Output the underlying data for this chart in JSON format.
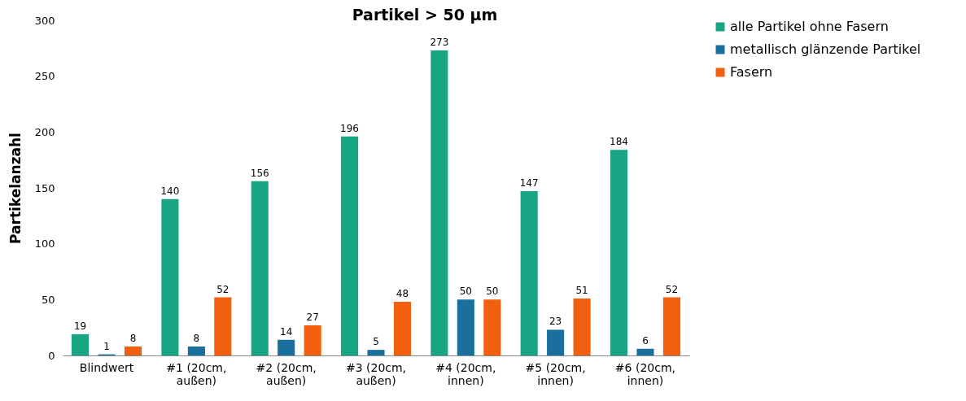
{
  "chart_data": {
    "type": "bar",
    "title": "Partikel > 50 µm",
    "ylabel": "Partikelanzahl",
    "categories": [
      "Blindwert",
      "#1 (20cm, außen)",
      "#2 (20cm, außen)",
      "#3 (20cm, außen)",
      "#4 (20cm, innen)",
      "#5 (20cm, innen)",
      "#6 (20cm, innen)"
    ],
    "series": [
      {
        "name": "alle Partikel ohne Fasern",
        "color": "#17a583",
        "values": [
          19,
          140,
          156,
          196,
          273,
          147,
          184
        ]
      },
      {
        "name": "metallisch glänzende Partikel",
        "color": "#1a6f9c",
        "values": [
          1,
          8,
          14,
          5,
          50,
          23,
          6
        ]
      },
      {
        "name": "Fasern",
        "color": "#f0600e",
        "values": [
          8,
          52,
          27,
          48,
          50,
          51,
          52
        ]
      }
    ],
    "ylim": [
      0,
      300
    ],
    "yticks": [
      0,
      50,
      100,
      150,
      200,
      250,
      300
    ],
    "grid": false,
    "legend": "right",
    "data_labels": true
  }
}
